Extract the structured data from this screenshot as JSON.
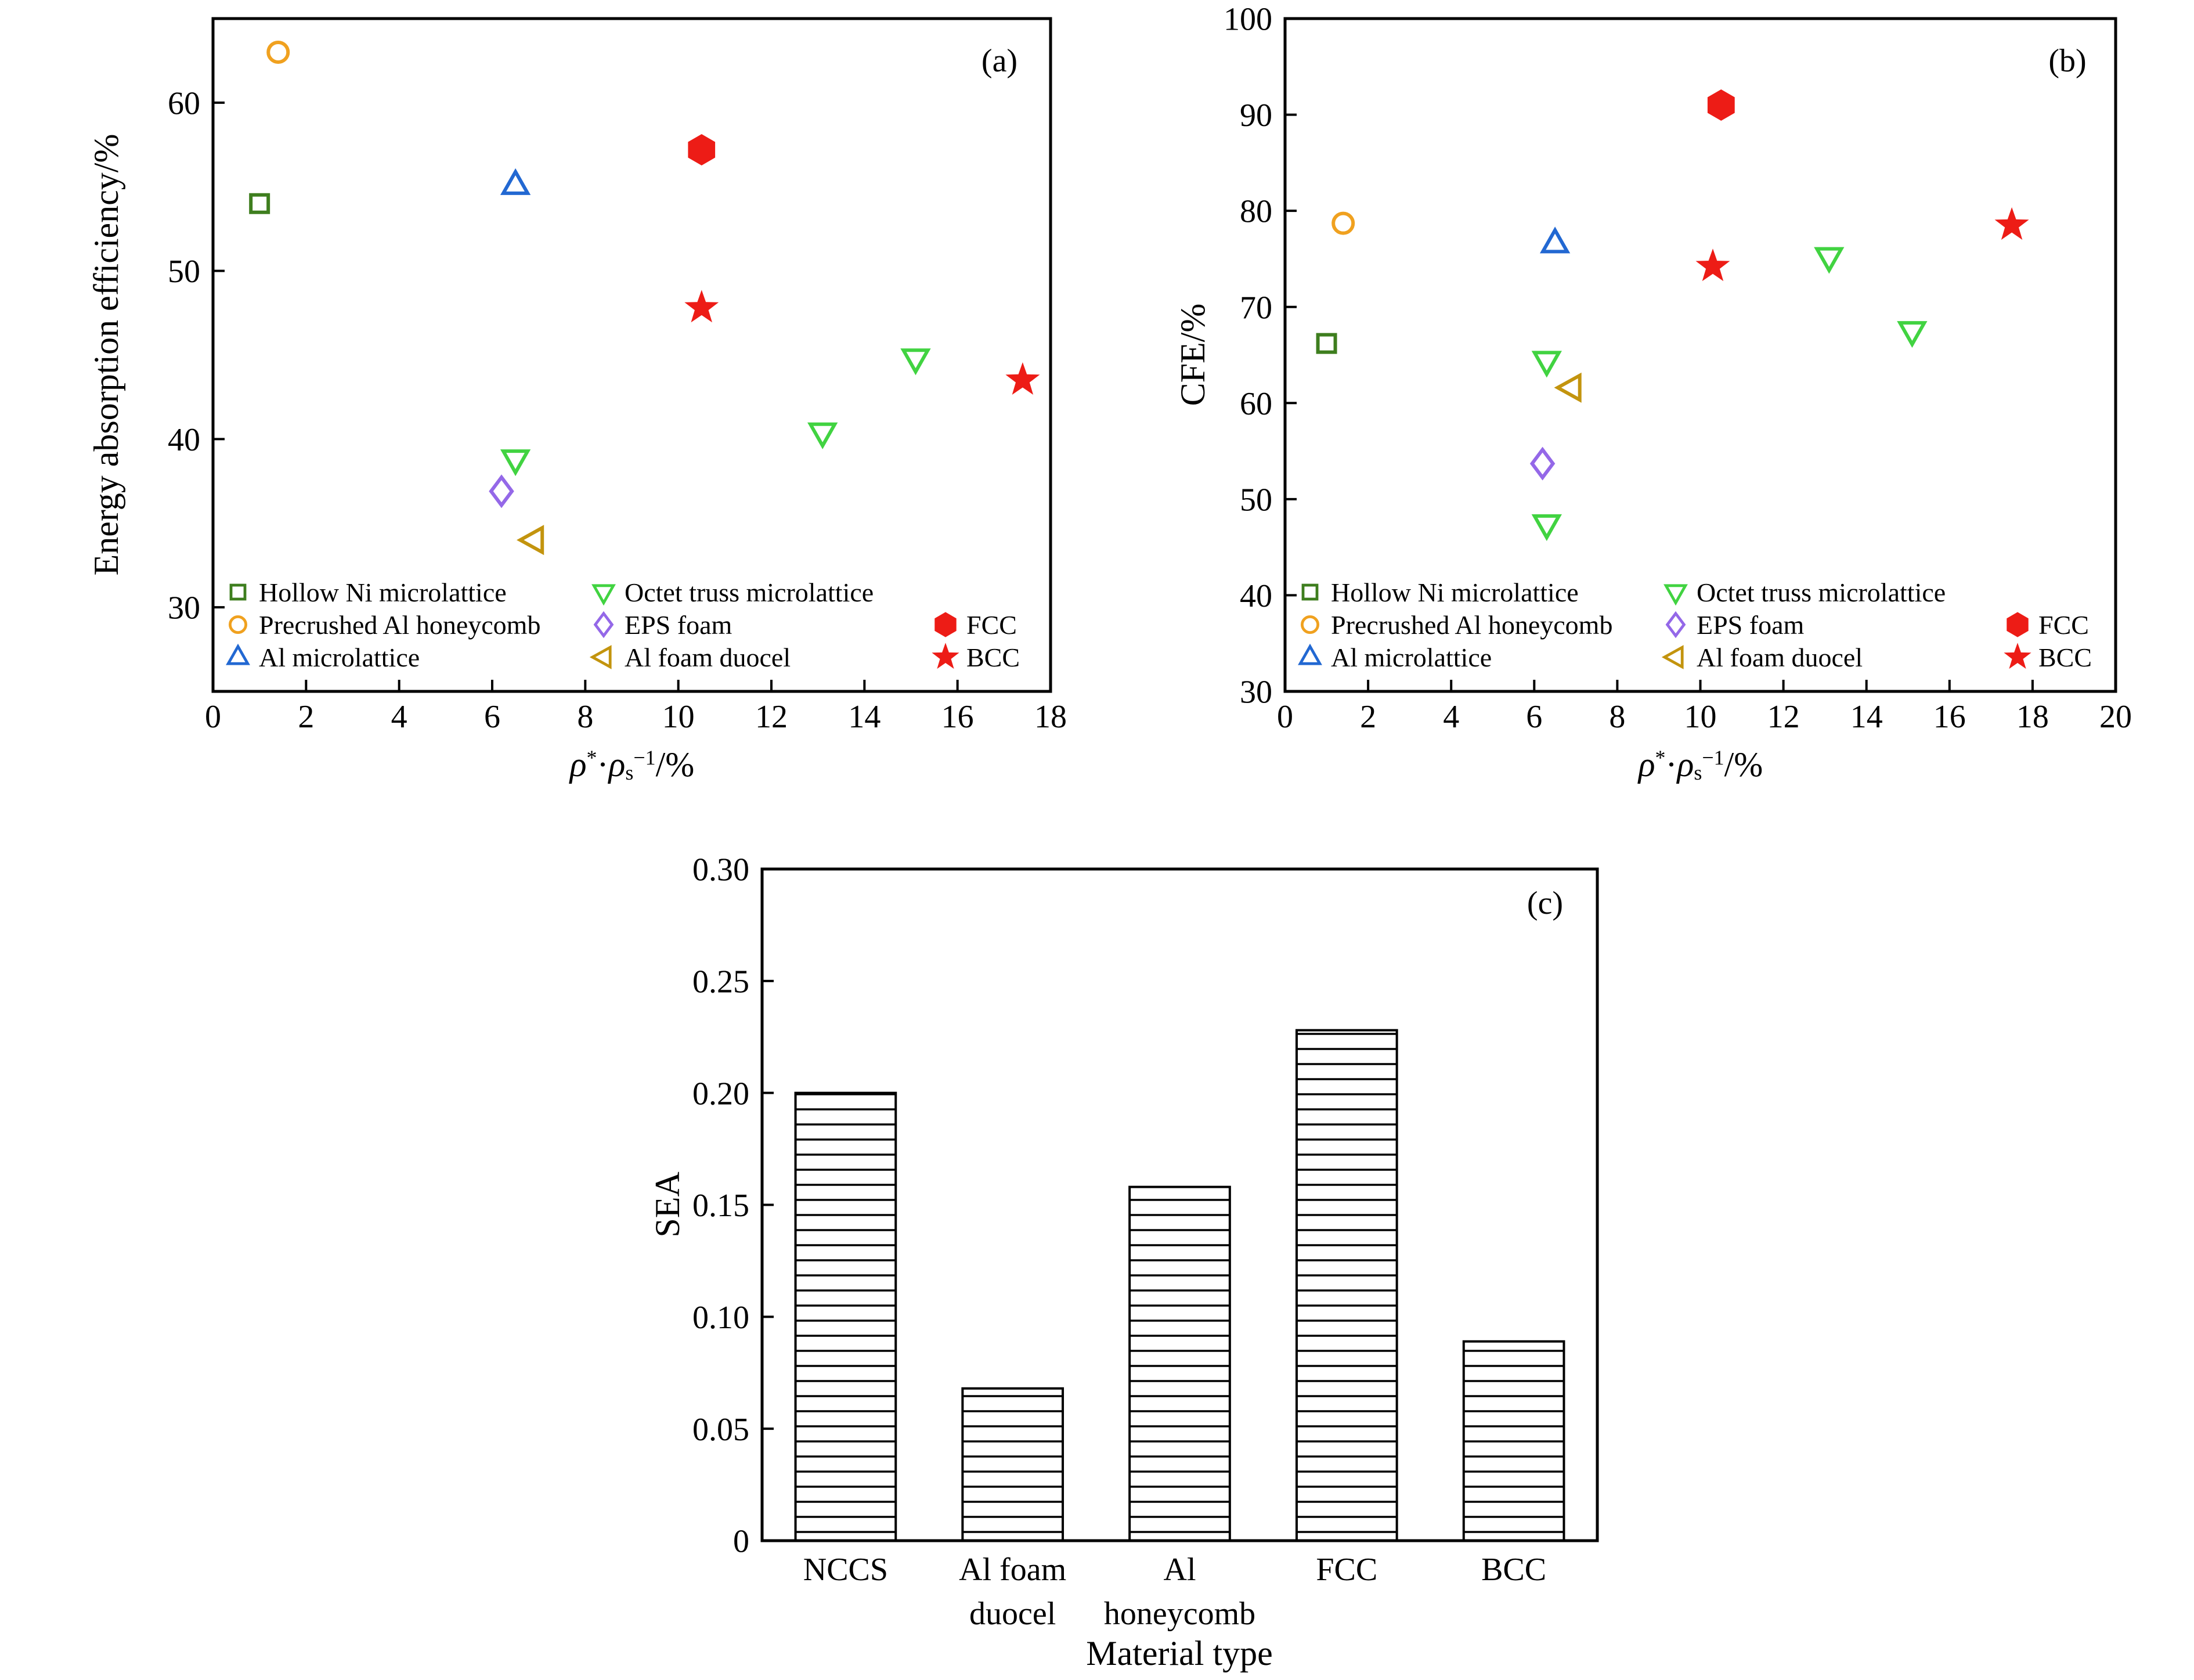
{
  "figure": {
    "background": "#ffffff",
    "text_color": "#000000"
  },
  "legend": {
    "items": [
      {
        "key": "hollow_ni",
        "label": "Hollow Ni microlattice",
        "marker": "square-open",
        "color": "#3e7e1e"
      },
      {
        "key": "precrushed",
        "label": "Precrushed Al honeycomb",
        "marker": "circle-open",
        "color": "#f0a11f"
      },
      {
        "key": "al_micro",
        "label": "Al microlattice",
        "marker": "triangle-up-open",
        "color": "#2268d2"
      },
      {
        "key": "octet",
        "label": "Octet truss microlattice",
        "marker": "triangle-down-open",
        "color": "#41d341"
      },
      {
        "key": "eps",
        "label": "EPS foam",
        "marker": "diamond-open",
        "color": "#9468e8"
      },
      {
        "key": "duocel",
        "label": "Al foam duocel",
        "marker": "triangle-left-open",
        "color": "#c3940e"
      },
      {
        "key": "fcc",
        "label": "FCC",
        "marker": "hexagon-filled",
        "color": "#ed1c16"
      },
      {
        "key": "bcc",
        "label": "BCC",
        "marker": "star-filled",
        "color": "#ed1c16"
      }
    ]
  },
  "chart_data": [
    {
      "id": "panel_a",
      "type": "scatter",
      "panel_label": "(a)",
      "title": "",
      "xlabel": "ρ*·ρs−1/%",
      "xlabel_rich": [
        {
          "text": "ρ",
          "style": "italic"
        },
        {
          "text": "*",
          "style": "super"
        },
        {
          "text": "·",
          "style": "normal"
        },
        {
          "text": "ρ",
          "style": "italic"
        },
        {
          "text": "s",
          "style": "sub"
        },
        {
          "text": "−1",
          "style": "super"
        },
        {
          "text": "/%",
          "style": "normal"
        }
      ],
      "ylabel": "Energy absorption efficiency/%",
      "xlim": [
        0,
        18
      ],
      "xticks": [
        0,
        2,
        4,
        6,
        8,
        10,
        12,
        14,
        16,
        18
      ],
      "ylim": [
        25,
        65
      ],
      "yticks": [
        30,
        40,
        50,
        60
      ],
      "grid": false,
      "legend_position": "lower-left-inside",
      "series": [
        {
          "legend_key": "hollow_ni",
          "points": [
            [
              1.0,
              54.0
            ]
          ]
        },
        {
          "legend_key": "precrushed",
          "points": [
            [
              1.4,
              63.0
            ]
          ]
        },
        {
          "legend_key": "al_micro",
          "points": [
            [
              6.5,
              55.1
            ]
          ]
        },
        {
          "legend_key": "octet",
          "points": [
            [
              6.5,
              38.8
            ],
            [
              13.1,
              40.4
            ],
            [
              15.1,
              44.8
            ]
          ]
        },
        {
          "legend_key": "eps",
          "points": [
            [
              6.2,
              36.9
            ]
          ]
        },
        {
          "legend_key": "duocel",
          "points": [
            [
              6.9,
              34.0
            ]
          ]
        },
        {
          "legend_key": "fcc",
          "points": [
            [
              10.5,
              57.2
            ]
          ]
        },
        {
          "legend_key": "bcc",
          "points": [
            [
              10.5,
              47.8
            ],
            [
              17.4,
              43.5
            ]
          ]
        }
      ]
    },
    {
      "id": "panel_b",
      "type": "scatter",
      "panel_label": "(b)",
      "title": "",
      "xlabel": "ρ*·ρs−1/%",
      "xlabel_rich": [
        {
          "text": "ρ",
          "style": "italic"
        },
        {
          "text": "*",
          "style": "super"
        },
        {
          "text": "·",
          "style": "normal"
        },
        {
          "text": "ρ",
          "style": "italic"
        },
        {
          "text": "s",
          "style": "sub"
        },
        {
          "text": "−1",
          "style": "super"
        },
        {
          "text": "/%",
          "style": "normal"
        }
      ],
      "ylabel": "CFE/%",
      "xlim": [
        0,
        20
      ],
      "xticks": [
        0,
        2,
        4,
        6,
        8,
        10,
        12,
        14,
        16,
        18,
        20
      ],
      "ylim": [
        30,
        100
      ],
      "yticks": [
        30,
        40,
        50,
        60,
        70,
        80,
        90,
        100
      ],
      "grid": false,
      "legend_position": "lower-left-inside",
      "series": [
        {
          "legend_key": "hollow_ni",
          "points": [
            [
              1.0,
              66.2
            ]
          ]
        },
        {
          "legend_key": "precrushed",
          "points": [
            [
              1.4,
              78.7
            ]
          ]
        },
        {
          "legend_key": "al_micro",
          "points": [
            [
              6.5,
              76.6
            ]
          ]
        },
        {
          "legend_key": "octet",
          "points": [
            [
              6.3,
              64.4
            ],
            [
              6.3,
              47.4
            ],
            [
              13.1,
              75.2
            ],
            [
              15.1,
              67.5
            ]
          ]
        },
        {
          "legend_key": "eps",
          "points": [
            [
              6.2,
              53.7
            ]
          ]
        },
        {
          "legend_key": "duocel",
          "points": [
            [
              6.9,
              61.6
            ]
          ]
        },
        {
          "legend_key": "fcc",
          "points": [
            [
              10.5,
              91.0
            ]
          ]
        },
        {
          "legend_key": "bcc",
          "points": [
            [
              10.3,
              74.2
            ],
            [
              17.5,
              78.5
            ]
          ]
        }
      ]
    },
    {
      "id": "panel_c",
      "type": "bar",
      "panel_label": "(c)",
      "title": "",
      "xlabel": "Material type",
      "ylabel": "SEA",
      "ylim": [
        0,
        0.3
      ],
      "yticks": [
        0,
        0.05,
        0.1,
        0.15,
        0.2,
        0.25,
        0.3
      ],
      "ytick_labels": [
        "0",
        "0.05",
        "0.10",
        "0.15",
        "0.20",
        "0.25",
        "0.30"
      ],
      "categories": [
        "NCCS",
        "Al foam\nduocel",
        "Al\nhoneycomb",
        "FCC",
        "BCC"
      ],
      "values": [
        0.2,
        0.068,
        0.158,
        0.228,
        0.089
      ],
      "bar_style": {
        "fill": "white",
        "hatch": "horizontal-lines",
        "edge_color": "#000000"
      },
      "grid": false
    }
  ]
}
